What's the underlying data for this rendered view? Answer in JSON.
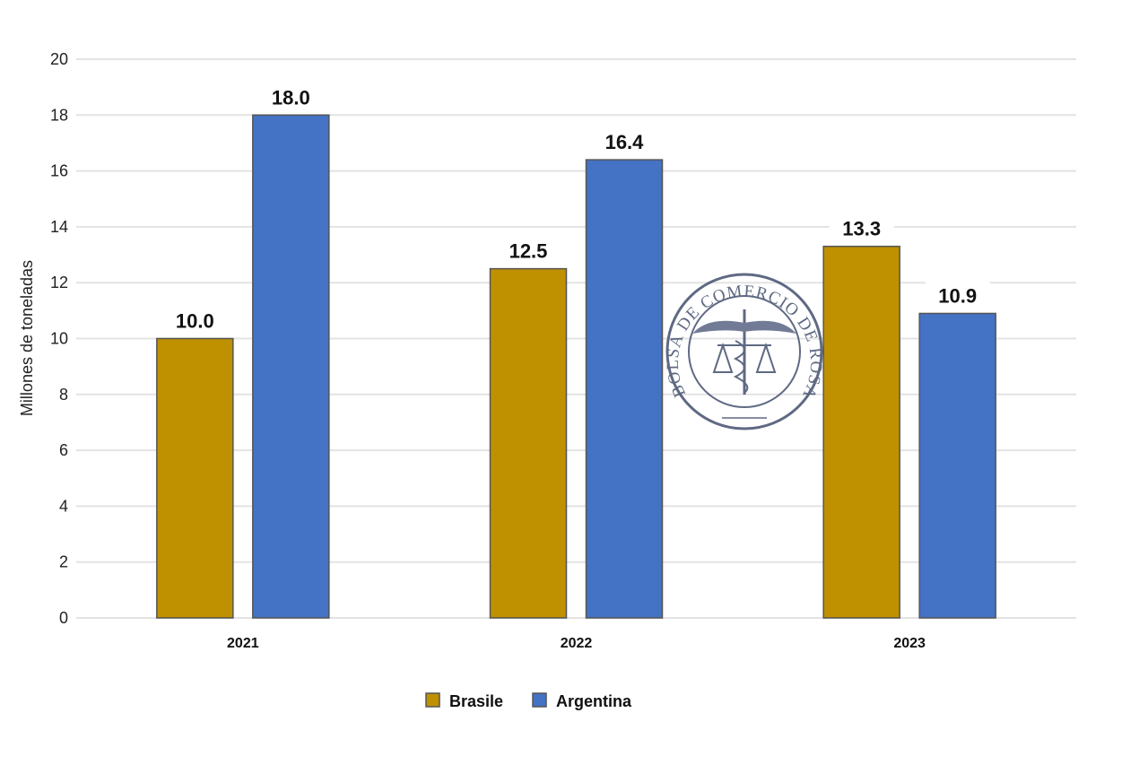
{
  "chart_data": {
    "type": "bar",
    "title": "",
    "xlabel": "",
    "ylabel": "Millones de toneladas",
    "categories": [
      "2021",
      "2022",
      "2023"
    ],
    "series": [
      {
        "name": "Brasile",
        "values": [
          10.0,
          12.5,
          13.3
        ],
        "color": "#BF9000"
      },
      {
        "name": "Argentina",
        "values": [
          18.0,
          16.4,
          10.9
        ],
        "color": "#4472C4"
      }
    ],
    "data_labels": [
      [
        "10.0",
        "12.5",
        "13.3"
      ],
      [
        "18.0",
        "16.4",
        "10.9"
      ]
    ],
    "ylim": [
      0,
      20
    ],
    "yticks": [
      "0",
      "2",
      "4",
      "6",
      "8",
      "10",
      "12",
      "14",
      "16",
      "18",
      "20"
    ],
    "grid": true,
    "legend_position": "bottom"
  },
  "watermark": {
    "text": "BOLSA DE COMERCIO DE ROSARIO"
  }
}
